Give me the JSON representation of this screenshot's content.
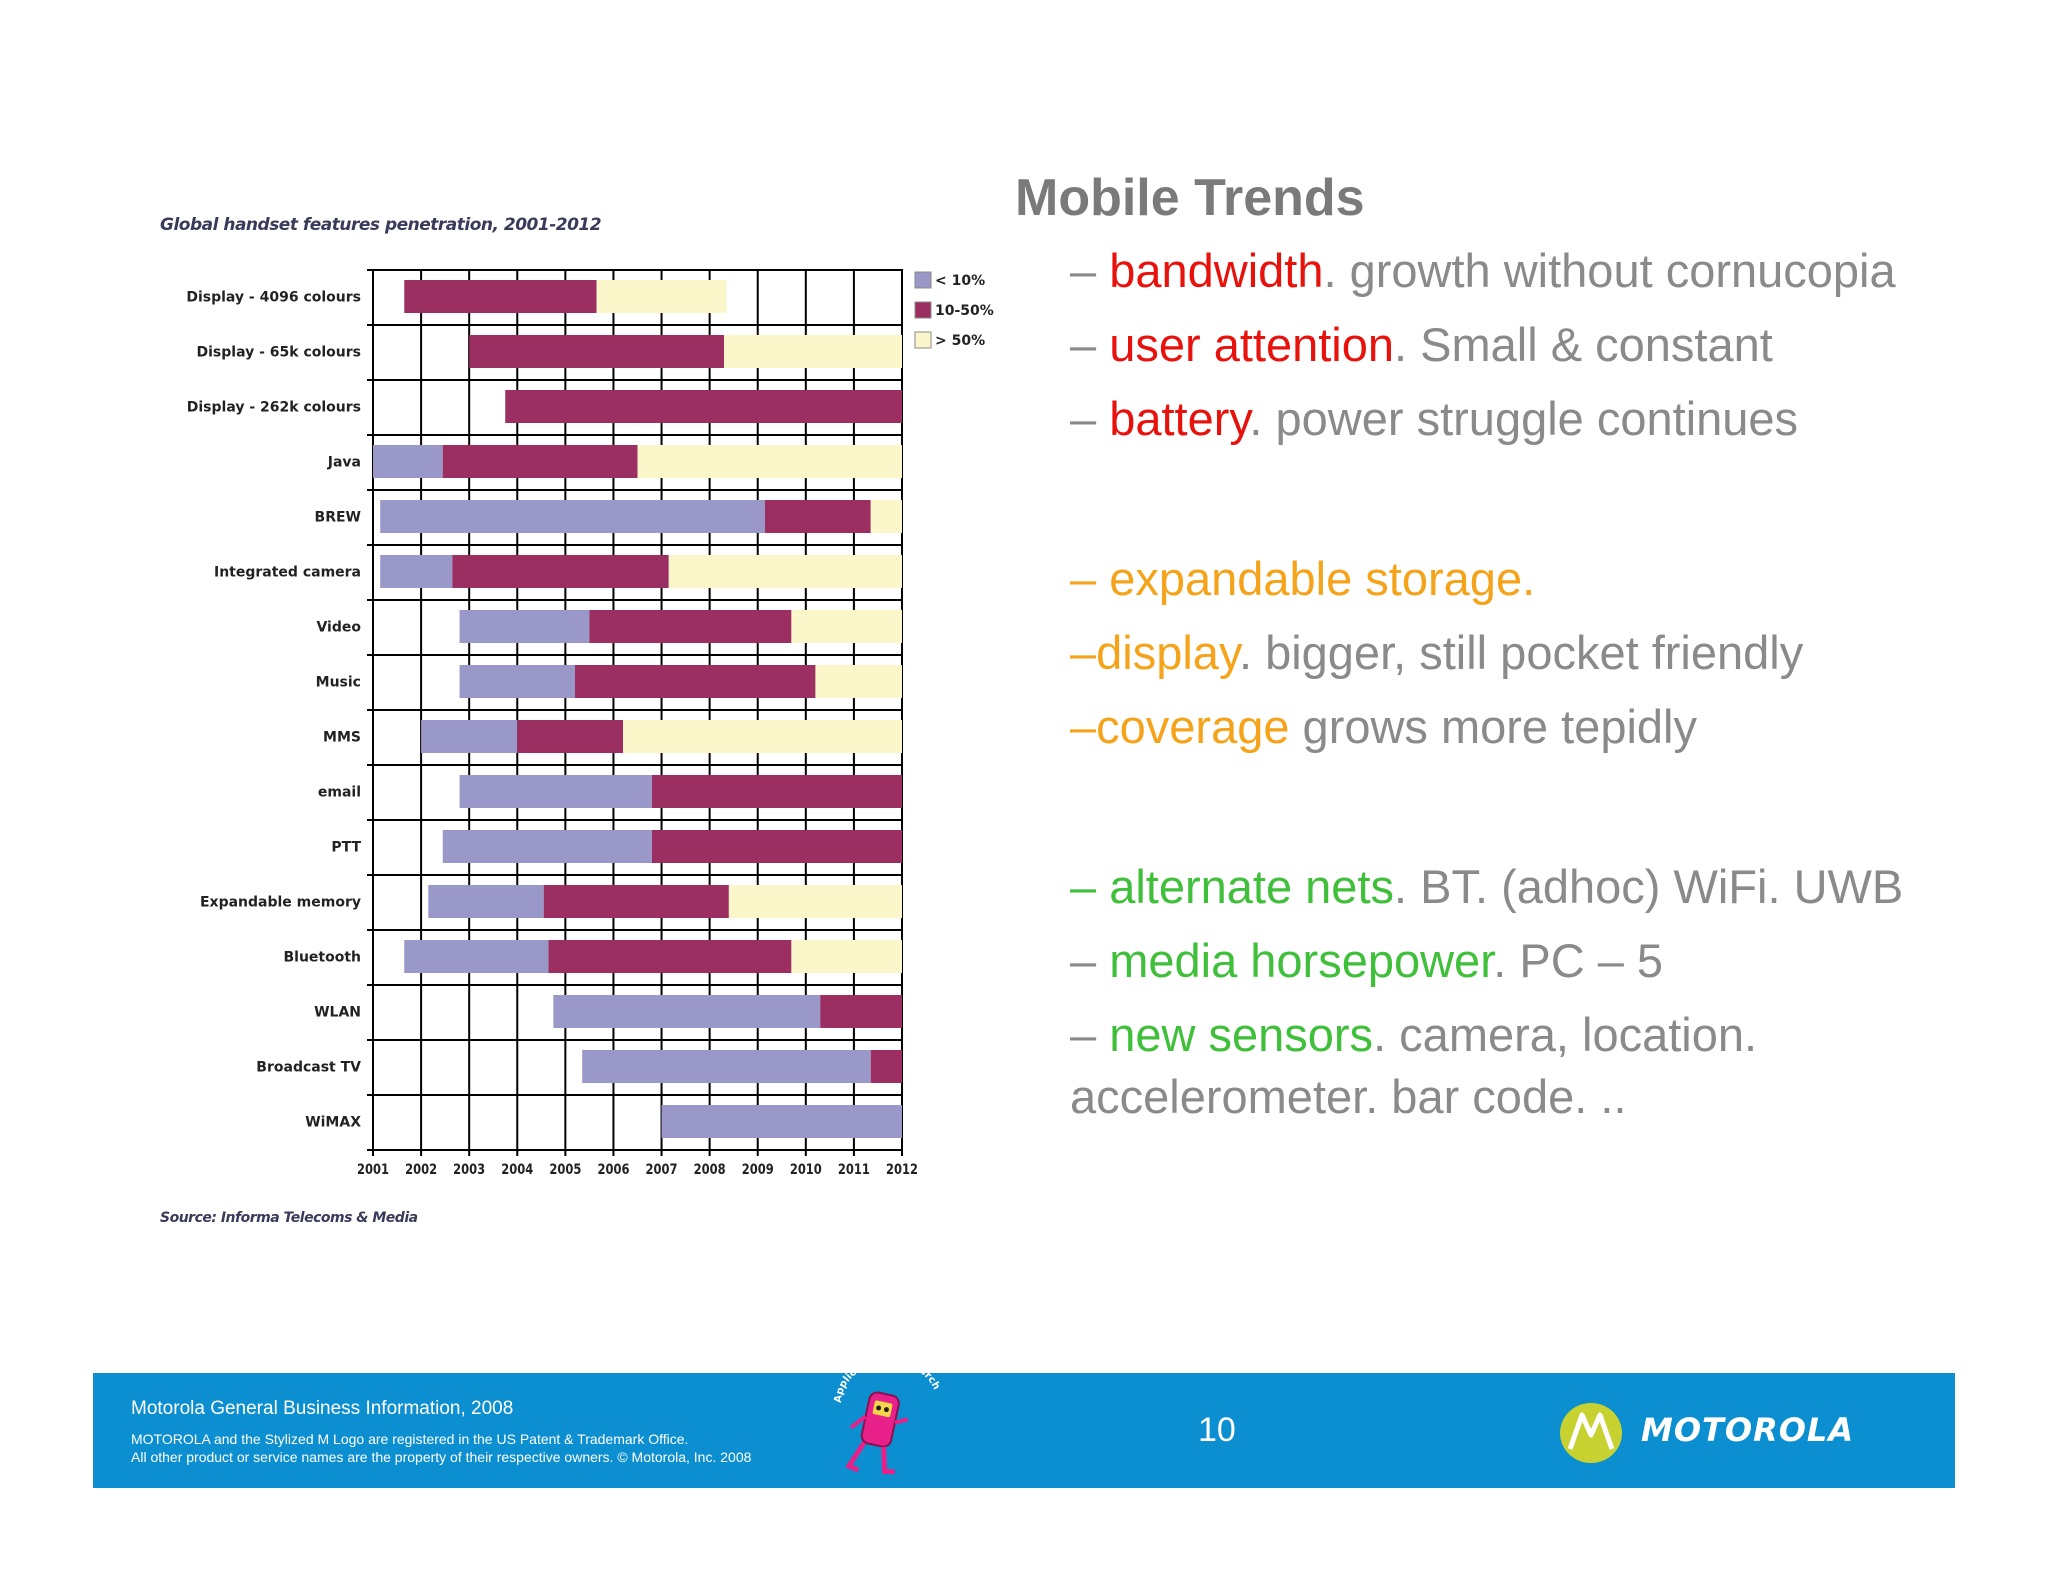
{
  "slide": {
    "title": "Mobile Trends",
    "page_number": "10",
    "bullets": [
      {
        "parts": [
          {
            "t": "– ",
            "c": "gray"
          },
          {
            "t": "bandwidth",
            "c": "red"
          },
          {
            "t": ". growth without cornucopia",
            "c": "gray"
          }
        ]
      },
      {
        "parts": [
          {
            "t": "– ",
            "c": "gray"
          },
          {
            "t": "user attention",
            "c": "red"
          },
          {
            "t": ". Small & constant",
            "c": "gray"
          }
        ]
      },
      {
        "parts": [
          {
            "t": "– ",
            "c": "gray"
          },
          {
            "t": "battery",
            "c": "red"
          },
          {
            "t": ". power struggle continues",
            "c": "gray"
          }
        ]
      },
      {
        "gap": true
      },
      {
        "parts": [
          {
            "t": "– expandable storage.",
            "c": "orange"
          }
        ]
      },
      {
        "parts": [
          {
            "t": "–display",
            "c": "orange"
          },
          {
            "t": ".  bigger, still pocket friendly",
            "c": "gray"
          }
        ]
      },
      {
        "parts": [
          {
            "t": "–coverage",
            "c": "orange"
          },
          {
            "t": " grows more tepidly",
            "c": "gray"
          }
        ]
      },
      {
        "gap": true
      },
      {
        "parts": [
          {
            "t": "– alternate nets",
            "c": "green"
          },
          {
            "t": ". BT. (adhoc) WiFi. UWB",
            "c": "gray"
          }
        ]
      },
      {
        "parts": [
          {
            "t": "– ",
            "c": "gray"
          },
          {
            "t": "media horsepower",
            "c": "green"
          },
          {
            "t": ". PC – 5",
            "c": "gray"
          }
        ]
      },
      {
        "parts": [
          {
            "t": "– ",
            "c": "gray"
          },
          {
            "t": "new sensors",
            "c": "green"
          },
          {
            "t": ". camera, location. accelerometer. bar code. ..",
            "c": "gray"
          }
        ]
      }
    ]
  },
  "footer": {
    "line1": "Motorola General Business Information,  2008",
    "line2a": "MOTOROLA and the Stylized M Logo are registered in the US Patent & Trademark Office.",
    "line2b": "All other product or service names are the property of their respective owners. © Motorola, Inc. 2008",
    "mascot_text": "Applications Research",
    "brand": "MOTOROLA"
  },
  "colors": {
    "gray": "#8a8a8a",
    "red": "#e8120c",
    "orange": "#f5a31a",
    "green": "#3fbf3a",
    "footer_bg": "#0c8fd0",
    "low": "#9a97c9",
    "mid": "#9b2f62",
    "high": "#fcf6cb"
  },
  "chart_data": {
    "type": "bar",
    "orientation": "horizontal-range",
    "title": "Global handset features penetration, 2001-2012",
    "source": "Source: Informa Telecoms & Media",
    "x_ticks": [
      "2001",
      "2002",
      "2003",
      "2004",
      "2005",
      "2006",
      "2007",
      "2008",
      "2009",
      "2010",
      "2011",
      "2012"
    ],
    "xlim": [
      2001,
      2012
    ],
    "legend": [
      {
        "label": "< 10%",
        "key": "low"
      },
      {
        "label": "10-50%",
        "key": "mid"
      },
      {
        "label": "> 50%",
        "key": "high"
      }
    ],
    "legend_position": "top-right",
    "grid": true,
    "rows": [
      {
        "label": "Display - 4096 colours",
        "segments": [
          {
            "key": "mid",
            "from": 2001.65,
            "to": 2005.65
          },
          {
            "key": "high",
            "from": 2005.65,
            "to": 2008.35
          }
        ]
      },
      {
        "label": "Display - 65k colours",
        "segments": [
          {
            "key": "mid",
            "from": 2003.0,
            "to": 2008.3
          },
          {
            "key": "high",
            "from": 2008.3,
            "to": 2012
          }
        ]
      },
      {
        "label": "Display - 262k colours",
        "segments": [
          {
            "key": "mid",
            "from": 2003.75,
            "to": 2012
          }
        ]
      },
      {
        "label": "Java",
        "segments": [
          {
            "key": "low",
            "from": 2001,
            "to": 2002.45
          },
          {
            "key": "mid",
            "from": 2002.45,
            "to": 2006.5
          },
          {
            "key": "high",
            "from": 2006.5,
            "to": 2012
          }
        ]
      },
      {
        "label": "BREW",
        "segments": [
          {
            "key": "low",
            "from": 2001.15,
            "to": 2009.15
          },
          {
            "key": "mid",
            "from": 2009.15,
            "to": 2011.35
          },
          {
            "key": "high",
            "from": 2011.35,
            "to": 2012
          }
        ]
      },
      {
        "label": "Integrated camera",
        "segments": [
          {
            "key": "low",
            "from": 2001.15,
            "to": 2002.65
          },
          {
            "key": "mid",
            "from": 2002.65,
            "to": 2007.15
          },
          {
            "key": "high",
            "from": 2007.15,
            "to": 2012
          }
        ]
      },
      {
        "label": "Video",
        "segments": [
          {
            "key": "low",
            "from": 2002.8,
            "to": 2005.5
          },
          {
            "key": "mid",
            "from": 2005.5,
            "to": 2009.7
          },
          {
            "key": "high",
            "from": 2009.7,
            "to": 2012
          }
        ]
      },
      {
        "label": "Music",
        "segments": [
          {
            "key": "low",
            "from": 2002.8,
            "to": 2005.2
          },
          {
            "key": "mid",
            "from": 2005.2,
            "to": 2010.2
          },
          {
            "key": "high",
            "from": 2010.2,
            "to": 2012
          }
        ]
      },
      {
        "label": "MMS",
        "segments": [
          {
            "key": "low",
            "from": 2002.0,
            "to": 2004.0
          },
          {
            "key": "mid",
            "from": 2004.0,
            "to": 2006.2
          },
          {
            "key": "high",
            "from": 2006.2,
            "to": 2012
          }
        ]
      },
      {
        "label": "email",
        "segments": [
          {
            "key": "low",
            "from": 2002.8,
            "to": 2006.8
          },
          {
            "key": "mid",
            "from": 2006.8,
            "to": 2012
          }
        ]
      },
      {
        "label": "PTT",
        "segments": [
          {
            "key": "low",
            "from": 2002.45,
            "to": 2006.8
          },
          {
            "key": "mid",
            "from": 2006.8,
            "to": 2012
          }
        ]
      },
      {
        "label": "Expandable memory",
        "segments": [
          {
            "key": "low",
            "from": 2002.15,
            "to": 2004.55
          },
          {
            "key": "mid",
            "from": 2004.55,
            "to": 2008.4
          },
          {
            "key": "high",
            "from": 2008.4,
            "to": 2012
          }
        ]
      },
      {
        "label": "Bluetooth",
        "segments": [
          {
            "key": "low",
            "from": 2001.65,
            "to": 2004.65
          },
          {
            "key": "mid",
            "from": 2004.65,
            "to": 2009.7
          },
          {
            "key": "high",
            "from": 2009.7,
            "to": 2012
          }
        ]
      },
      {
        "label": "WLAN",
        "segments": [
          {
            "key": "low",
            "from": 2004.75,
            "to": 2010.3
          },
          {
            "key": "mid",
            "from": 2010.3,
            "to": 2012
          }
        ]
      },
      {
        "label": "Broadcast TV",
        "segments": [
          {
            "key": "low",
            "from": 2005.35,
            "to": 2011.35
          },
          {
            "key": "mid",
            "from": 2011.35,
            "to": 2012
          }
        ]
      },
      {
        "label": "WiMAX",
        "segments": [
          {
            "key": "low",
            "from": 2007.0,
            "to": 2012
          }
        ]
      }
    ]
  }
}
